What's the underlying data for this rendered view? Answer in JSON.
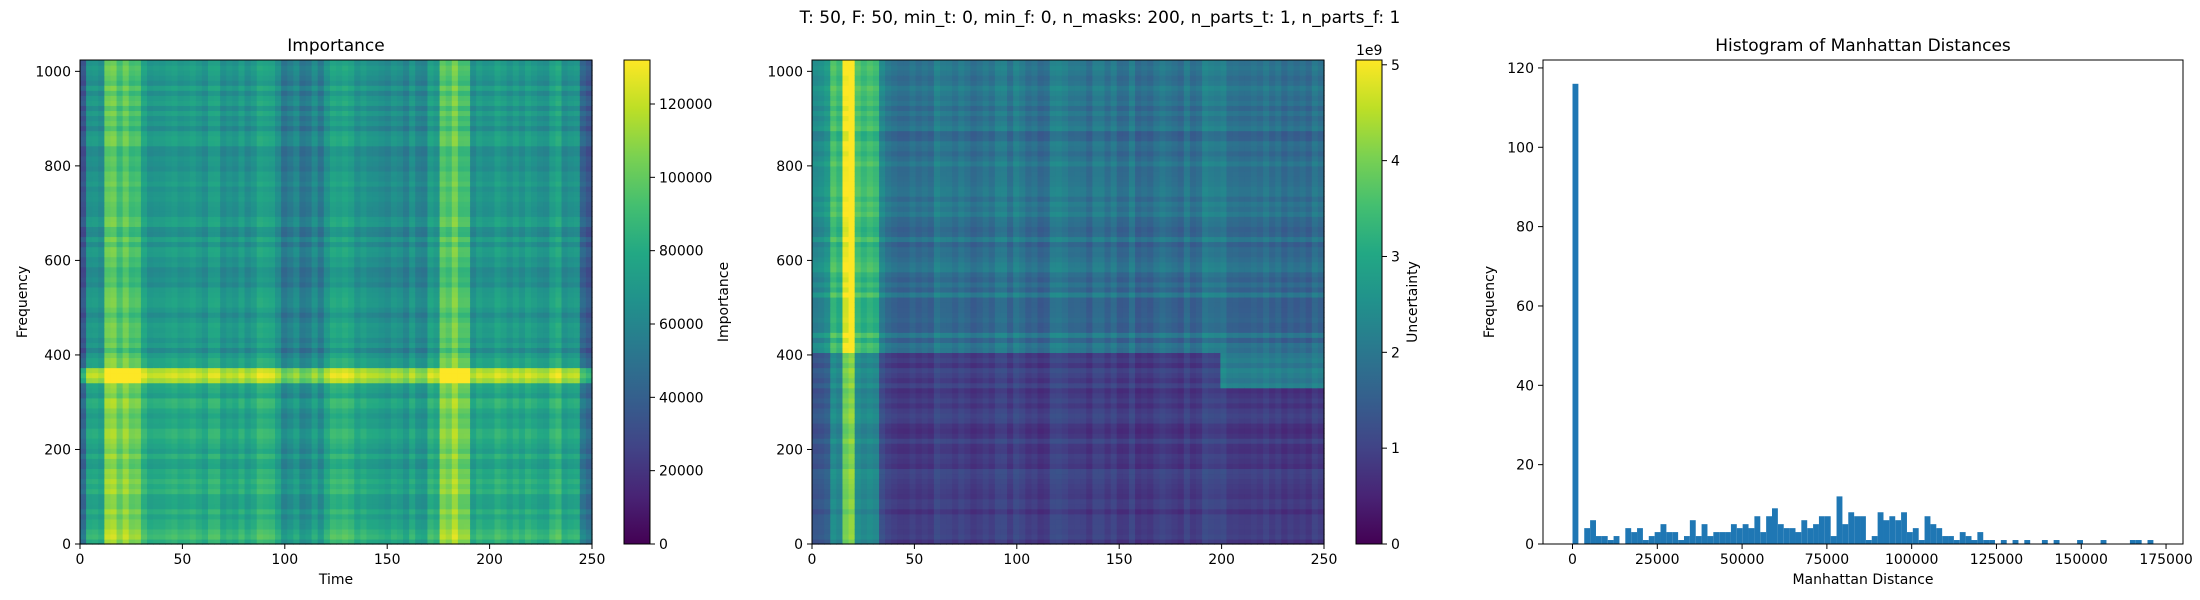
{
  "suptitle": "T: 50, F: 50, min_t: 0, min_f: 0, n_masks: 200, n_parts_t: 1, n_parts_f: 1",
  "colors": {
    "bar": "#1f77b4",
    "colormap": "viridis"
  },
  "chart_data": [
    {
      "type": "heatmap",
      "title": "Importance",
      "xlabel": "Time",
      "ylabel": "Frequency",
      "xlim": [
        0,
        250
      ],
      "ylim": [
        0,
        1024
      ],
      "xticks": [
        0,
        50,
        100,
        150,
        200,
        250
      ],
      "yticks": [
        0,
        200,
        400,
        600,
        800,
        1000
      ],
      "colorbar": {
        "label": "Importance",
        "range": [
          0,
          132000
        ],
        "ticks": [
          0,
          20000,
          40000,
          60000,
          80000,
          100000,
          120000
        ],
        "offset_label": ""
      },
      "features": {
        "bright_band_frequency": [
          345,
          375
        ],
        "bright_time_columns": [
          [
            12,
            30
          ],
          [
            175,
            190
          ]
        ],
        "dark_edges": true
      }
    },
    {
      "type": "heatmap",
      "title": "",
      "xlabel": "",
      "ylabel": "",
      "xlim": [
        0,
        250
      ],
      "ylim": [
        0,
        1024
      ],
      "xticks": [
        0,
        50,
        100,
        150,
        200,
        250
      ],
      "yticks": [
        0,
        200,
        400,
        600,
        800,
        1000
      ],
      "colorbar": {
        "label": "Uncertainty",
        "range": [
          0,
          5.05
        ],
        "ticks": [
          0,
          1,
          2,
          3,
          4,
          5
        ],
        "offset_label": "1e9"
      },
      "features": {
        "bright_time_columns": [
          [
            14,
            22
          ]
        ],
        "transition_frequency": 410,
        "dark_region": [
          [
            50,
            250
          ],
          [
            0,
            350
          ]
        ]
      }
    },
    {
      "type": "bar",
      "title": "Histogram of Manhattan Distances",
      "xlabel": "Manhattan Distance",
      "ylabel": "Frequency",
      "xlim": [
        -8700,
        180000
      ],
      "ylim": [
        0,
        122
      ],
      "xticks": [
        0,
        25000,
        50000,
        75000,
        100000,
        125000,
        150000,
        175000
      ],
      "yticks": [
        0,
        20,
        40,
        60,
        80,
        100,
        120
      ],
      "bin_width": 1730,
      "bins": [
        [
          0,
          116
        ],
        [
          2,
          4
        ],
        [
          3,
          6
        ],
        [
          4,
          2
        ],
        [
          5,
          2
        ],
        [
          6,
          1
        ],
        [
          7,
          2
        ],
        [
          9,
          4
        ],
        [
          10,
          3
        ],
        [
          11,
          4
        ],
        [
          12,
          1
        ],
        [
          13,
          2
        ],
        [
          14,
          3
        ],
        [
          15,
          5
        ],
        [
          16,
          3
        ],
        [
          17,
          3
        ],
        [
          18,
          1
        ],
        [
          19,
          2
        ],
        [
          20,
          6
        ],
        [
          21,
          2
        ],
        [
          22,
          5
        ],
        [
          23,
          2
        ],
        [
          24,
          3
        ],
        [
          25,
          3
        ],
        [
          26,
          3
        ],
        [
          27,
          5
        ],
        [
          28,
          4
        ],
        [
          29,
          5
        ],
        [
          30,
          4
        ],
        [
          31,
          7
        ],
        [
          32,
          3
        ],
        [
          33,
          7
        ],
        [
          34,
          9
        ],
        [
          35,
          5
        ],
        [
          36,
          4
        ],
        [
          37,
          4
        ],
        [
          38,
          3
        ],
        [
          39,
          6
        ],
        [
          40,
          4
        ],
        [
          41,
          5
        ],
        [
          42,
          7
        ],
        [
          43,
          7
        ],
        [
          44,
          2
        ],
        [
          45,
          12
        ],
        [
          46,
          5
        ],
        [
          47,
          8
        ],
        [
          48,
          7
        ],
        [
          49,
          7
        ],
        [
          50,
          1
        ],
        [
          51,
          2
        ],
        [
          52,
          8
        ],
        [
          53,
          6
        ],
        [
          54,
          7
        ],
        [
          55,
          6
        ],
        [
          56,
          8
        ],
        [
          57,
          3
        ],
        [
          58,
          4
        ],
        [
          59,
          1
        ],
        [
          60,
          7
        ],
        [
          61,
          5
        ],
        [
          62,
          4
        ],
        [
          63,
          2
        ],
        [
          64,
          2
        ],
        [
          65,
          1
        ],
        [
          66,
          3
        ],
        [
          67,
          2
        ],
        [
          68,
          1
        ],
        [
          69,
          3
        ],
        [
          70,
          1
        ],
        [
          71,
          1
        ],
        [
          73,
          1
        ],
        [
          75,
          1
        ],
        [
          77,
          1
        ],
        [
          80,
          1
        ],
        [
          82,
          1
        ],
        [
          86,
          1
        ],
        [
          90,
          1
        ],
        [
          95,
          1
        ],
        [
          96,
          1
        ],
        [
          98,
          1
        ]
      ]
    }
  ]
}
